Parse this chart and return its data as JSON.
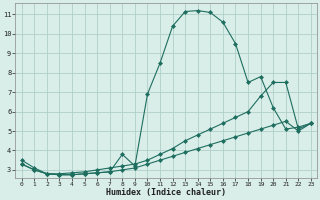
{
  "xlabel": "Humidex (Indice chaleur)",
  "background_color": "#d9eee9",
  "grid_color": "#b0cfc8",
  "line_color": "#1e6e60",
  "xlim": [
    0,
    23
  ],
  "ylim": [
    2.6,
    11.6
  ],
  "xticks": [
    0,
    1,
    2,
    3,
    4,
    5,
    6,
    7,
    8,
    9,
    10,
    11,
    12,
    13,
    14,
    15,
    16,
    17,
    18,
    19,
    20,
    21,
    22,
    23
  ],
  "yticks": [
    3,
    4,
    5,
    6,
    7,
    8,
    9,
    10,
    11
  ],
  "series1_x": [
    0,
    1,
    2,
    3,
    4,
    5,
    6,
    7,
    8,
    9,
    10,
    11,
    12,
    13,
    14,
    15,
    16,
    17,
    18,
    19,
    20,
    21,
    22,
    23
  ],
  "series1_y": [
    3.5,
    3.1,
    2.8,
    2.75,
    2.75,
    2.8,
    2.85,
    2.9,
    3.8,
    3.2,
    6.9,
    8.5,
    10.4,
    11.15,
    11.2,
    11.1,
    10.6,
    9.5,
    7.5,
    7.8,
    6.2,
    5.1,
    5.2,
    5.4
  ],
  "series2_x": [
    0,
    1,
    2,
    3,
    4,
    5,
    6,
    7,
    8,
    9,
    10,
    11,
    12,
    13,
    14,
    15,
    16,
    17,
    18,
    19,
    20,
    21,
    22,
    23
  ],
  "series2_y": [
    3.3,
    3.0,
    2.8,
    2.8,
    2.85,
    2.9,
    3.0,
    3.1,
    3.2,
    3.3,
    3.5,
    3.8,
    4.1,
    4.5,
    4.8,
    5.1,
    5.4,
    5.7,
    6.0,
    6.8,
    7.5,
    7.5,
    5.1,
    5.4
  ],
  "series3_x": [
    0,
    1,
    2,
    3,
    4,
    5,
    6,
    7,
    8,
    9,
    10,
    11,
    12,
    13,
    14,
    15,
    16,
    17,
    18,
    19,
    20,
    21,
    22,
    23
  ],
  "series3_y": [
    3.3,
    3.0,
    2.8,
    2.75,
    2.75,
    2.8,
    2.85,
    2.9,
    3.0,
    3.1,
    3.3,
    3.5,
    3.7,
    3.9,
    4.1,
    4.3,
    4.5,
    4.7,
    4.9,
    5.1,
    5.3,
    5.5,
    5.0,
    5.4
  ]
}
